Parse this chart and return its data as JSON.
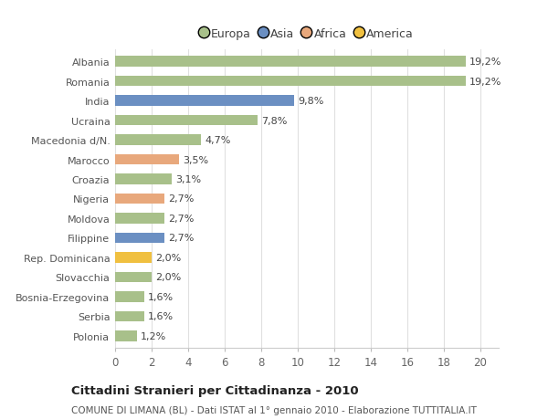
{
  "categories": [
    "Albania",
    "Romania",
    "India",
    "Ucraina",
    "Macedonia d/N.",
    "Marocco",
    "Croazia",
    "Nigeria",
    "Moldova",
    "Filippine",
    "Rep. Dominicana",
    "Slovacchia",
    "Bosnia-Erzegovina",
    "Serbia",
    "Polonia"
  ],
  "values": [
    19.2,
    19.2,
    9.8,
    7.8,
    4.7,
    3.5,
    3.1,
    2.7,
    2.7,
    2.7,
    2.0,
    2.0,
    1.6,
    1.6,
    1.2
  ],
  "labels": [
    "19,2%",
    "19,2%",
    "9,8%",
    "7,8%",
    "4,7%",
    "3,5%",
    "3,1%",
    "2,7%",
    "2,7%",
    "2,7%",
    "2,0%",
    "2,0%",
    "1,6%",
    "1,6%",
    "1,2%"
  ],
  "colors": [
    "#a8c08a",
    "#a8c08a",
    "#6b8fc2",
    "#a8c08a",
    "#a8c08a",
    "#e8a87c",
    "#a8c08a",
    "#e8a87c",
    "#a8c08a",
    "#6b8fc2",
    "#f0c040",
    "#a8c08a",
    "#a8c08a",
    "#a8c08a",
    "#a8c08a"
  ],
  "legend": {
    "Europa": "#a8c08a",
    "Asia": "#6b8fc2",
    "Africa": "#e8a87c",
    "America": "#f0c040"
  },
  "xlim": [
    0,
    21
  ],
  "xticks": [
    0,
    2,
    4,
    6,
    8,
    10,
    12,
    14,
    16,
    18,
    20
  ],
  "title": "Cittadini Stranieri per Cittadinanza - 2010",
  "subtitle": "COMUNE DI LIMANA (BL) - Dati ISTAT al 1° gennaio 2010 - Elaborazione TUTTITALIA.IT",
  "background_color": "#ffffff",
  "grid_color": "#e0e0e0",
  "bar_height": 0.55,
  "label_fontsize": 8.0,
  "ytick_fontsize": 8.0,
  "xtick_fontsize": 8.5
}
